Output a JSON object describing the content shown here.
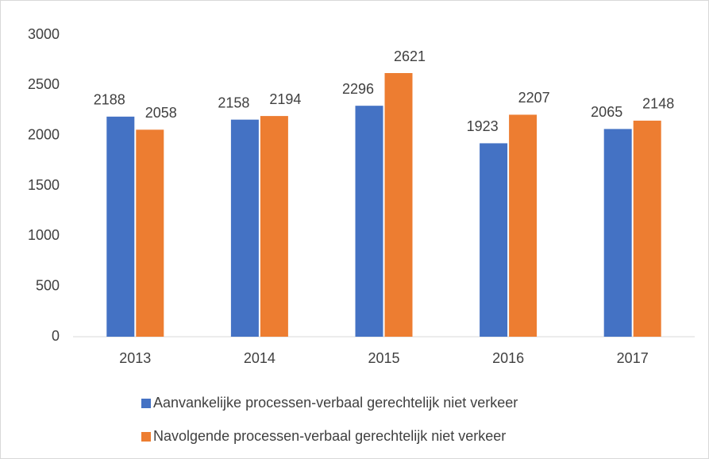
{
  "chart_data": {
    "type": "bar",
    "categories": [
      "2013",
      "2014",
      "2015",
      "2016",
      "2017"
    ],
    "series": [
      {
        "name": "Aanvankelijke processen-verbaal gerechtelijk niet verkeer",
        "color": "#4472c4",
        "values": [
          2188,
          2158,
          2296,
          1923,
          2065
        ]
      },
      {
        "name": "Navolgende processen-verbaal gerechtelijk niet verkeer",
        "color": "#ed7d31",
        "values": [
          2058,
          2194,
          2621,
          2207,
          2148
        ]
      }
    ],
    "ylim": [
      0,
      3000
    ],
    "yticks": [
      0,
      500,
      1000,
      1500,
      2000,
      2500,
      3000
    ],
    "grid": false,
    "legend": "bottom"
  }
}
